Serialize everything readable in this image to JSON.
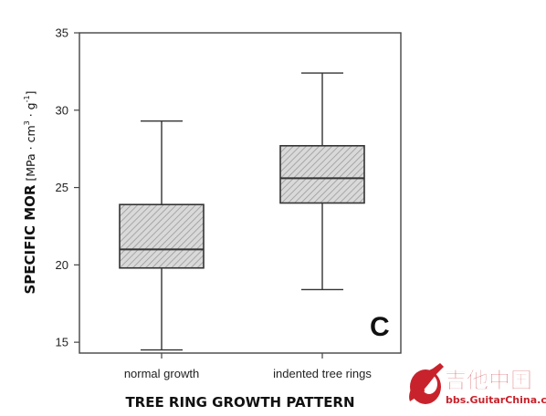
{
  "chart_data": {
    "type": "box",
    "xlabel": "TREE RING GROWTH PATTERN",
    "ylabel": {
      "main": "SPECIFIC MOR",
      "unit_prefix": " [MPa · cm",
      "unit_sup1": "3",
      "unit_mid": " · g",
      "unit_sup2": "-1",
      "unit_suffix": "]"
    },
    "ylim": [
      14.3,
      35
    ],
    "yticks": [
      15,
      20,
      25,
      30,
      35
    ],
    "grid": false,
    "panel_label": "C",
    "boxes": [
      {
        "category": "normal growth",
        "whisker_low": 14.5,
        "q1": 19.8,
        "median": 21.0,
        "q3": 23.9,
        "whisker_high": 29.3
      },
      {
        "category": "indented tree rings",
        "whisker_low": 18.4,
        "q1": 24.0,
        "median": 25.6,
        "q3": 27.7,
        "whisker_high": 32.4
      }
    ],
    "box_fill": "#d9d9d9",
    "hatch_color": "#9a9a9a",
    "line_color": "#333333"
  },
  "watermark": {
    "name": "吉他中国",
    "url": "bbs.GuitarChina.com",
    "color": "#c8232c"
  }
}
